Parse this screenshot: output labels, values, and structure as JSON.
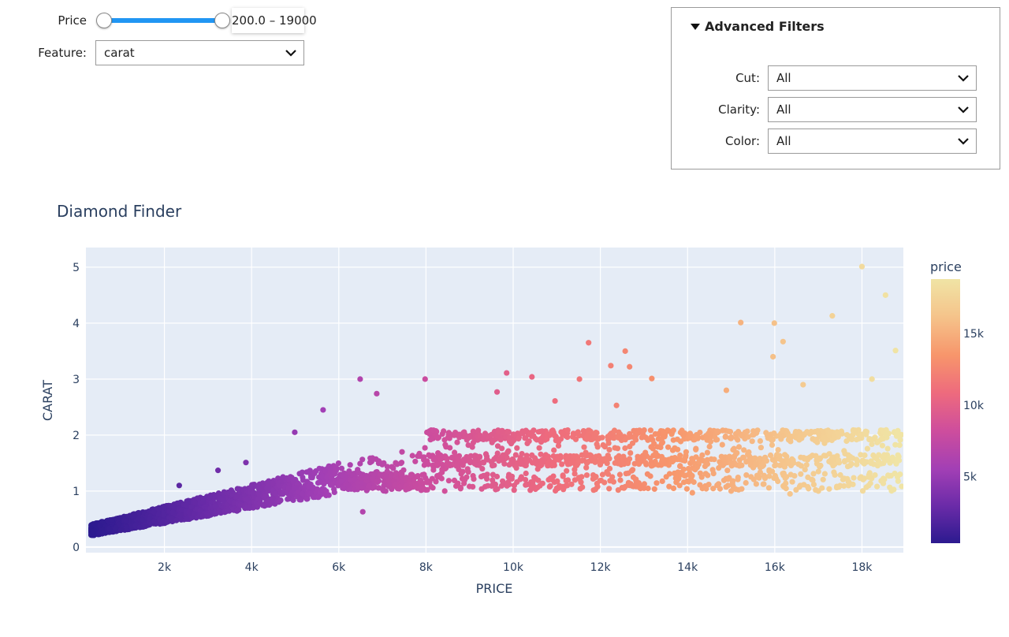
{
  "controls": {
    "price": {
      "label": "Price",
      "min": 200,
      "max": 19000,
      "low": 200,
      "high": 19000,
      "readout": "200.0 – 19000"
    },
    "feature": {
      "label": "Feature:",
      "value": "carat"
    }
  },
  "advanced_filters": {
    "summary": "Advanced Filters",
    "filters": [
      {
        "label": "Cut:",
        "value": "All"
      },
      {
        "label": "Clarity:",
        "value": "All"
      },
      {
        "label": "Color:",
        "value": "All"
      }
    ]
  },
  "chart_data": {
    "type": "scatter",
    "title": "Diamond Finder",
    "xlabel": "PRICE",
    "ylabel": "CARAT",
    "xlim": [
      200,
      18950
    ],
    "ylim": [
      -0.1,
      5.35
    ],
    "xticks": [
      2000,
      4000,
      6000,
      8000,
      10000,
      12000,
      14000,
      16000,
      18000
    ],
    "xtick_labels": [
      "2k",
      "4k",
      "6k",
      "8k",
      "10k",
      "12k",
      "14k",
      "16k",
      "18k"
    ],
    "yticks": [
      0,
      1,
      2,
      3,
      4,
      5
    ],
    "ytick_labels": [
      "0",
      "1",
      "2",
      "3",
      "4",
      "5"
    ],
    "grid": true,
    "colorbar": {
      "title": "price",
      "range": [
        326,
        18823
      ],
      "ticks": [
        5000,
        10000,
        15000
      ],
      "tick_labels": [
        "5k",
        "10k",
        "15k"
      ],
      "colorscale": [
        "#2c1a8f",
        "#6a2ba8",
        "#a23fb5",
        "#cf4e9c",
        "#ee6b7d",
        "#f7956b",
        "#f5c48b",
        "#f0e4a5"
      ]
    },
    "series": [
      {
        "values": [
          [
            18000,
            5.01
          ],
          [
            18540,
            4.5
          ],
          [
            17320,
            4.13
          ],
          [
            15220,
            4.01
          ],
          [
            15990,
            4.0
          ],
          [
            16190,
            3.67
          ],
          [
            11730,
            3.65
          ],
          [
            18770,
            3.51
          ],
          [
            12570,
            3.5
          ],
          [
            15960,
            3.4
          ],
          [
            12240,
            3.24
          ],
          [
            12670,
            3.22
          ],
          [
            9850,
            3.11
          ],
          [
            6490,
            3.0
          ],
          [
            7980,
            3.0
          ],
          [
            10430,
            3.04
          ],
          [
            11520,
            3.0
          ],
          [
            13180,
            3.01
          ],
          [
            14890,
            2.8
          ],
          [
            16650,
            2.9
          ],
          [
            18230,
            3.0
          ],
          [
            9630,
            2.77
          ],
          [
            10960,
            2.61
          ],
          [
            12370,
            2.53
          ],
          [
            6870,
            2.74
          ],
          [
            5640,
            2.45
          ],
          [
            4990,
            2.05
          ],
          [
            3870,
            1.51
          ],
          [
            3230,
            1.37
          ],
          [
            2340,
            1.1
          ],
          [
            2700,
            0.8
          ],
          [
            1000,
            0.3
          ],
          [
            600,
            0.25
          ],
          [
            6550,
            0.63
          ],
          [
            8430,
            1.0
          ],
          [
            11000,
            1.05
          ],
          [
            13000,
            1.05
          ],
          [
            15000,
            1.0
          ],
          [
            17000,
            1.0
          ],
          [
            18700,
            1.6
          ],
          [
            14110,
            0.97
          ],
          [
            16350,
            0.95
          ]
        ]
      }
    ]
  }
}
